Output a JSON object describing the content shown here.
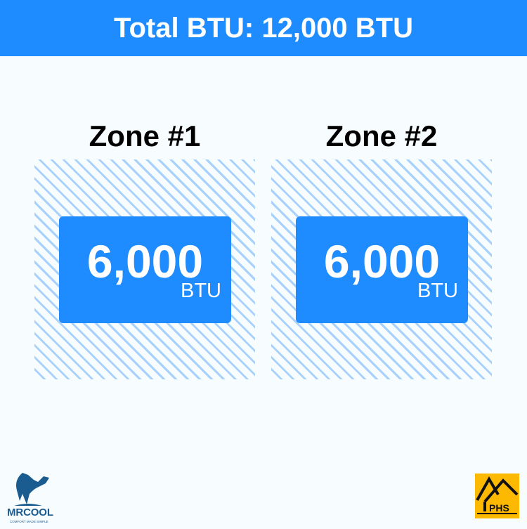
{
  "header": {
    "title": "Total BTU: 12,000 BTU"
  },
  "zones": [
    {
      "title": "Zone #1",
      "value": "6,000",
      "unit": "BTU"
    },
    {
      "title": "Zone #2",
      "value": "6,000",
      "unit": "BTU"
    }
  ],
  "logos": {
    "left": {
      "text": "MRCOOL",
      "tagline": "COMFORT MADE SIMPLE"
    },
    "right": {
      "text": "PHS"
    }
  },
  "colors": {
    "accent": "#1e8cff",
    "hatch": "#a8d2fb",
    "background": "#f7fcff",
    "phs": "#fdb900",
    "mrcool": "#1a5c8f"
  }
}
